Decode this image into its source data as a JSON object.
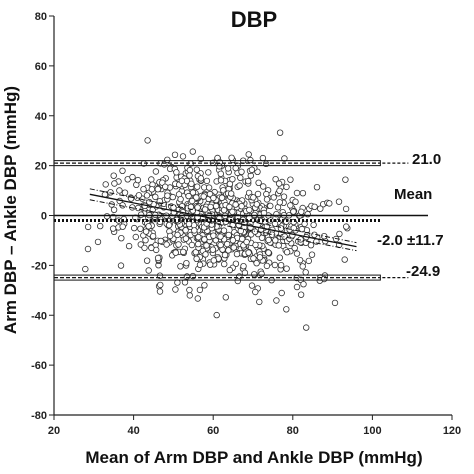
{
  "chart_data": {
    "type": "scatter",
    "title": "DBP",
    "xlabel": "Mean of Arm DBP and Ankle DBP (mmHg)",
    "ylabel": "Arm DBP – Ankle DBP (mmHg)",
    "xlim": [
      20,
      120
    ],
    "ylim": [
      -80,
      80
    ],
    "xticks": [
      "20",
      "40",
      "60",
      "80",
      "100",
      "120"
    ],
    "yticks": [
      "80",
      "60",
      "40",
      "20",
      "0",
      "-20",
      "-40",
      "-60",
      "-80"
    ],
    "reference_lines": {
      "zero": 0,
      "mean": -2.0,
      "upper_loa": 21.0,
      "lower_loa": -24.9,
      "line_x_range": [
        20,
        102
      ]
    },
    "regression": {
      "x_range": [
        29,
        96
      ],
      "y_start": 8.5,
      "y_end": -12.5
    },
    "annotations": {
      "upper": "21.0",
      "mean_label": "Mean",
      "mean_value": "-2.0 ±11.7",
      "lower": "-24.9"
    },
    "scatter_region": {
      "x_center": 61,
      "x_spread": 13,
      "x_min": 27,
      "x_max": 98,
      "y_center": -2.0,
      "y_spread": 11.7,
      "y_min": -52,
      "y_max": 38,
      "n": 900
    },
    "grid": false,
    "colors": {
      "points": "#333333",
      "lines": "#111111",
      "background": "#ffffff"
    }
  }
}
